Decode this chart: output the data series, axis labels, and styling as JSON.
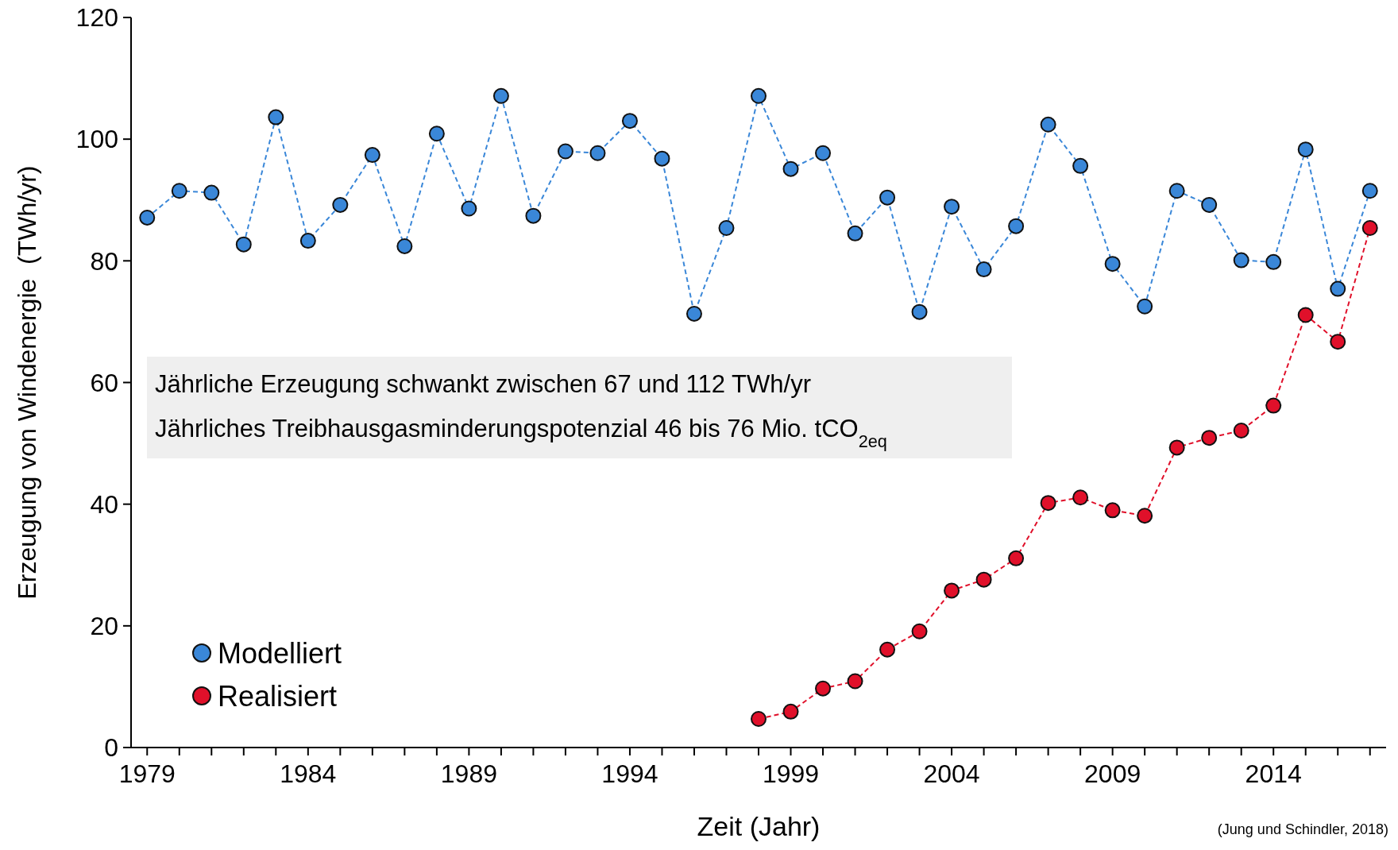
{
  "chart_data": {
    "type": "line",
    "xlabel": "Zeit (Jahr)",
    "ylabel": "Erzeugung von Windenergie  (TWh/yr)",
    "xlim": [
      1978.5,
      2017.5
    ],
    "ylim": [
      0,
      120
    ],
    "xticks": [
      1979,
      {
        "value": 1980,
        "label": null
      },
      {
        "value": 1981,
        "label": null
      },
      {
        "value": 1982,
        "label": null
      },
      {
        "value": 1983,
        "label": null
      },
      1984,
      {
        "value": 1985,
        "label": null
      },
      {
        "value": 1986,
        "label": null
      },
      {
        "value": 1987,
        "label": null
      },
      {
        "value": 1988,
        "label": null
      },
      1989,
      {
        "value": 1990,
        "label": null
      },
      {
        "value": 1991,
        "label": null
      },
      {
        "value": 1992,
        "label": null
      },
      {
        "value": 1993,
        "label": null
      },
      1994,
      {
        "value": 1995,
        "label": null
      },
      {
        "value": 1996,
        "label": null
      },
      {
        "value": 1997,
        "label": null
      },
      {
        "value": 1998,
        "label": null
      },
      1999,
      {
        "value": 2000,
        "label": null
      },
      {
        "value": 2001,
        "label": null
      },
      {
        "value": 2002,
        "label": null
      },
      {
        "value": 2003,
        "label": null
      },
      2004,
      {
        "value": 2005,
        "label": null
      },
      {
        "value": 2006,
        "label": null
      },
      {
        "value": 2007,
        "label": null
      },
      {
        "value": 2008,
        "label": null
      },
      2009,
      {
        "value": 2010,
        "label": null
      },
      {
        "value": 2011,
        "label": null
      },
      {
        "value": 2012,
        "label": null
      },
      {
        "value": 2013,
        "label": null
      },
      2014,
      {
        "value": 2015,
        "label": null
      },
      {
        "value": 2016,
        "label": null
      },
      {
        "value": 2017,
        "label": null
      }
    ],
    "yticks": [
      0,
      20,
      40,
      60,
      80,
      100,
      120
    ],
    "grid": false,
    "legend": "bottom left",
    "marker": "circle",
    "line_style": "dashed",
    "series": [
      {
        "name": "Modelliert",
        "color": "#3a87d8",
        "x": [
          1979,
          1980,
          1981,
          1982,
          1983,
          1984,
          1985,
          1986,
          1987,
          1988,
          1989,
          1990,
          1991,
          1992,
          1993,
          1994,
          1995,
          1996,
          1997,
          1998,
          1999,
          2000,
          2001,
          2002,
          2003,
          2004,
          2005,
          2006,
          2007,
          2008,
          2009,
          2010,
          2011,
          2012,
          2013,
          2014,
          2015,
          2016,
          2017
        ],
        "values": [
          87.1,
          91.5,
          91.2,
          82.7,
          103.6,
          83.3,
          89.2,
          97.4,
          82.4,
          100.9,
          88.6,
          107.1,
          87.4,
          98.0,
          97.7,
          103.0,
          96.8,
          71.3,
          85.4,
          107.1,
          95.1,
          97.7,
          84.5,
          90.4,
          71.6,
          88.9,
          78.6,
          85.7,
          102.4,
          95.6,
          79.5,
          72.5,
          91.5,
          89.2,
          80.1,
          79.8,
          98.3,
          75.4,
          91.5
        ]
      },
      {
        "name": "Realisiert",
        "color": "#e0102a",
        "x": [
          1998,
          1999,
          2000,
          2001,
          2002,
          2003,
          2004,
          2005,
          2006,
          2007,
          2008,
          2009,
          2010,
          2011,
          2012,
          2013,
          2014,
          2015,
          2016,
          2017
        ],
        "values": [
          4.7,
          5.9,
          9.7,
          10.9,
          16.1,
          19.1,
          25.8,
          27.6,
          31.1,
          40.2,
          41.1,
          39.0,
          38.1,
          49.3,
          50.9,
          52.1,
          56.2,
          71.1,
          66.7,
          85.4
        ]
      }
    ],
    "annotations": [
      "Jährliche Erzeugung schwankt zwischen 67 und 112 TWh/yr",
      "Jährliches Treibhausgasminderungspotenzial 46 bis 76 Mio. tCO$_{2eq}$",
      "(Jung und Schindler, 2018)"
    ]
  }
}
